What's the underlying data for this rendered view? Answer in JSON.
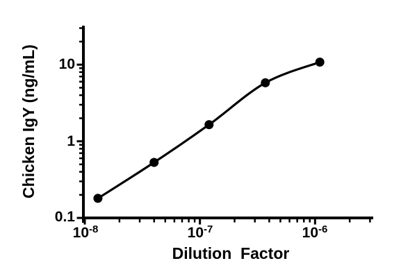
{
  "figure": {
    "background_color": "#ffffff",
    "ink_color": "#000000"
  },
  "chart_data": {
    "type": "scatter",
    "title": "",
    "xlabel": "Dilution  Factor",
    "ylabel": "Chicken IgY (ng/mL)",
    "x_scale": "log",
    "y_scale": "log",
    "xlim": [
      1e-08,
      3.2e-06
    ],
    "ylim": [
      0.1,
      31.6
    ],
    "grid": false,
    "legend_position": "none",
    "marker": "filled-circle",
    "curve_type": "smooth-sigmoid-fit-through-points",
    "points": [
      {
        "x": 1.3e-08,
        "y": 0.18
      },
      {
        "x": 4e-08,
        "y": 0.53
      },
      {
        "x": 1.2e-07,
        "y": 1.65
      },
      {
        "x": 3.7e-07,
        "y": 5.8
      },
      {
        "x": 1.1e-06,
        "y": 10.8
      }
    ],
    "x_ticks": [
      {
        "value": 1e-08,
        "base": "10",
        "exp": "-8"
      },
      {
        "value": 1e-07,
        "base": "10",
        "exp": "-7"
      },
      {
        "value": 1e-06,
        "base": "10",
        "exp": "-6"
      }
    ],
    "y_ticks": [
      {
        "value": 10,
        "label": "10"
      },
      {
        "value": 1,
        "label": "1"
      },
      {
        "value": 0.1,
        "label": "0.1"
      }
    ]
  }
}
